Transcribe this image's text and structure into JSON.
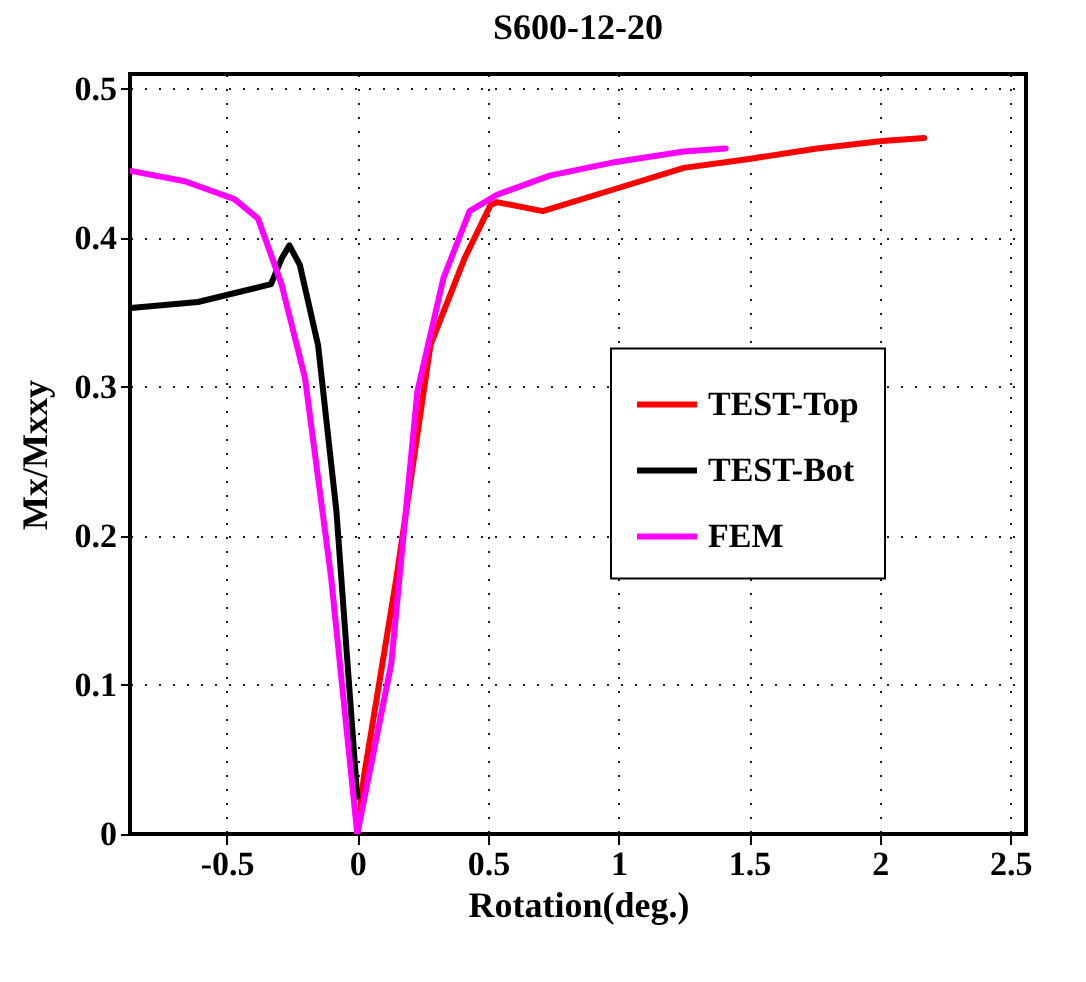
{
  "chart_data": {
    "type": "line",
    "title": "S600-12-20",
    "xlabel": "Rotation(deg.)",
    "ylabel": "Mx/Mxxy",
    "xlim": [
      -0.87,
      2.56
    ],
    "ylim": [
      0,
      0.51
    ],
    "xticks": [
      -0.5,
      0,
      0.5,
      1,
      1.5,
      2,
      2.5
    ],
    "yticks": [
      0,
      0.1,
      0.2,
      0.3,
      0.4,
      0.5
    ],
    "grid": true,
    "legend": "right",
    "line_style": "solid",
    "marker": "none",
    "series": [
      {
        "name": "TEST-Top",
        "color": "#ff0000",
        "x": [
          0,
          0.025,
          0.15,
          0.28,
          0.41,
          0.51,
          0.535,
          0.71,
          0.99,
          1.25,
          1.5,
          1.76,
          2.01,
          2.17
        ],
        "values": [
          0,
          0.038,
          0.172,
          0.328,
          0.386,
          0.422,
          0.424,
          0.418,
          0.433,
          0.447,
          0.453,
          0.46,
          0.465,
          0.467
        ]
      },
      {
        "name": "TEST-Bot",
        "color": "#000000",
        "x": [
          -0.867,
          -0.61,
          -0.33,
          -0.29,
          -0.26,
          -0.22,
          -0.15,
          -0.08,
          0
        ],
        "values": [
          0.353,
          0.357,
          0.369,
          0.386,
          0.395,
          0.382,
          0.328,
          0.217,
          0.025
        ]
      },
      {
        "name": "FEM",
        "color": "#ff00ff",
        "x": [
          -0.867,
          -0.66,
          -0.47,
          -0.38,
          -0.29,
          -0.2,
          -0.1,
          0,
          0.13,
          0.23,
          0.33,
          0.43,
          0.535,
          0.74,
          0.99,
          1.25,
          1.41
        ],
        "values": [
          0.445,
          0.438,
          0.426,
          0.413,
          0.369,
          0.306,
          0.172,
          0,
          0.114,
          0.297,
          0.373,
          0.418,
          0.429,
          0.442,
          0.451,
          0.458,
          0.46
        ]
      }
    ]
  }
}
